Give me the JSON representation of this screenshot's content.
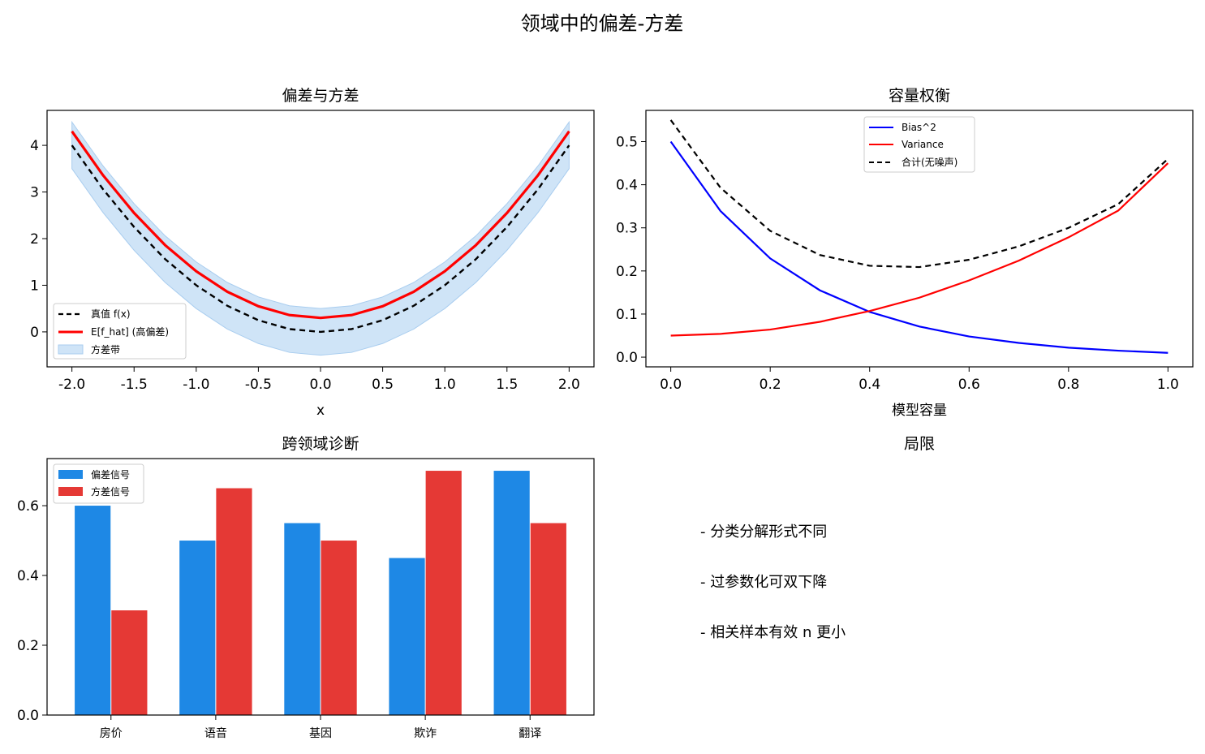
{
  "figure": {
    "title": "领域中的偏差-方差"
  },
  "panels": {
    "limits": {
      "title": "局限",
      "items": [
        "- 分类分解形式不同",
        "- 过参数化可双下降",
        "- 相关样本有效 n 更小"
      ]
    }
  },
  "colors": {
    "truth": "#000000",
    "estimate": "#ff0000",
    "band": "#cfe4f7",
    "band_edge": "#a9cdef",
    "bias": "#0000ff",
    "variance": "#ff0000",
    "total": "#000000",
    "bar_bias": "#1e88e5",
    "bar_variance": "#e53935"
  },
  "chart_data": [
    {
      "id": "bias-variance",
      "type": "line",
      "title": "偏差与方差",
      "xlabel": "x",
      "ylabel": "",
      "xlim": [
        -2.2,
        2.2
      ],
      "ylim": [
        -0.75,
        4.75
      ],
      "xticks": [
        -2.0,
        -1.5,
        -1.0,
        -0.5,
        0.0,
        0.5,
        1.0,
        1.5,
        2.0
      ],
      "xtick_labels": [
        "-2.0",
        "-1.5",
        "-1.0",
        "-0.5",
        "0.0",
        "0.5",
        "1.0",
        "1.5",
        "2.0"
      ],
      "yticks": [
        0,
        1,
        2,
        3,
        4
      ],
      "ytick_labels": [
        "0",
        "1",
        "2",
        "3",
        "4"
      ],
      "x": [
        -2.0,
        -1.75,
        -1.5,
        -1.25,
        -1.0,
        -0.75,
        -0.5,
        -0.25,
        0.0,
        0.25,
        0.5,
        0.75,
        1.0,
        1.25,
        1.5,
        1.75,
        2.0
      ],
      "series": [
        {
          "name": "真值 f(x)",
          "style": "dashed",
          "y": [
            4.0,
            3.06,
            2.25,
            1.56,
            1.0,
            0.56,
            0.25,
            0.06,
            0.0,
            0.06,
            0.25,
            0.56,
            1.0,
            1.56,
            2.25,
            3.06,
            4.0
          ]
        },
        {
          "name": "E[f_hat] (高偏差)",
          "style": "solid",
          "y": [
            4.3,
            3.36,
            2.55,
            1.86,
            1.3,
            0.86,
            0.55,
            0.36,
            0.3,
            0.36,
            0.55,
            0.86,
            1.3,
            1.86,
            2.55,
            3.36,
            4.3
          ]
        }
      ],
      "band": {
        "name": "方差带",
        "lower": [
          3.5,
          2.56,
          1.75,
          1.06,
          0.5,
          0.06,
          -0.25,
          -0.44,
          -0.5,
          -0.44,
          -0.25,
          0.06,
          0.5,
          1.06,
          1.75,
          2.56,
          3.5
        ],
        "upper": [
          4.5,
          3.56,
          2.75,
          2.06,
          1.5,
          1.06,
          0.75,
          0.56,
          0.5,
          0.56,
          0.75,
          1.06,
          1.5,
          2.06,
          2.75,
          3.56,
          4.5
        ]
      },
      "legend": "lower-left",
      "legend_labels": [
        "真值 f(x)",
        "E[f_hat] (高偏差)",
        "方差带"
      ]
    },
    {
      "id": "capacity-tradeoff",
      "type": "line",
      "title": "容量权衡",
      "xlabel": "模型容量",
      "ylabel": "",
      "xlim": [
        -0.05,
        1.05
      ],
      "ylim": [
        -0.0225,
        0.5725
      ],
      "xticks": [
        0.0,
        0.2,
        0.4,
        0.6,
        0.8,
        1.0
      ],
      "xtick_labels": [
        "0.0",
        "0.2",
        "0.4",
        "0.6",
        "0.8",
        "1.0"
      ],
      "yticks": [
        0.0,
        0.1,
        0.2,
        0.3,
        0.4,
        0.5
      ],
      "ytick_labels": [
        "0.0",
        "0.1",
        "0.2",
        "0.3",
        "0.4",
        "0.5"
      ],
      "x": [
        0.0,
        0.1,
        0.2,
        0.3,
        0.4,
        0.5,
        0.6,
        0.7,
        0.8,
        0.9,
        1.0
      ],
      "series": [
        {
          "name": "Bias^2",
          "style": "solid",
          "y": [
            0.5,
            0.339,
            0.229,
            0.155,
            0.105,
            0.071,
            0.048,
            0.033,
            0.022,
            0.015,
            0.01
          ]
        },
        {
          "name": "Variance",
          "style": "solid",
          "y": [
            0.05,
            0.054,
            0.064,
            0.082,
            0.107,
            0.138,
            0.178,
            0.224,
            0.278,
            0.34,
            0.45
          ]
        },
        {
          "name": "合计(无噪声)",
          "style": "dashed",
          "y": [
            0.55,
            0.393,
            0.293,
            0.237,
            0.212,
            0.209,
            0.226,
            0.257,
            0.3,
            0.355,
            0.46
          ]
        }
      ],
      "legend": "top-center",
      "legend_labels": [
        "Bias^2",
        "Variance",
        "合计(无噪声)"
      ]
    },
    {
      "id": "cross-domain",
      "type": "bar",
      "title": "跨领域诊断",
      "categories": [
        "房价",
        "语音",
        "基因",
        "欺诈",
        "翻译"
      ],
      "ylim": [
        0,
        0.735
      ],
      "yticks": [
        0.0,
        0.2,
        0.4,
        0.6
      ],
      "ytick_labels": [
        "0.0",
        "0.2",
        "0.4",
        "0.6"
      ],
      "series": [
        {
          "name": "偏差信号",
          "values": [
            0.6,
            0.5,
            0.55,
            0.45,
            0.7
          ]
        },
        {
          "name": "方差信号",
          "values": [
            0.3,
            0.65,
            0.5,
            0.7,
            0.55
          ]
        }
      ],
      "legend": "top-left",
      "legend_labels": [
        "偏差信号",
        "方差信号"
      ]
    }
  ]
}
